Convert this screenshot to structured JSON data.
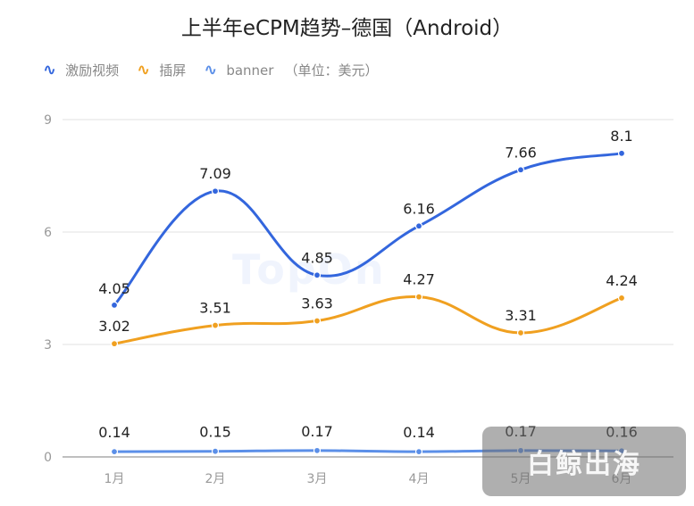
{
  "chart_data": {
    "type": "line",
    "title": "上半年eCPM趋势–德国（Android）",
    "unit_note": "（单位：美元）",
    "categories": [
      "1月",
      "2月",
      "3月",
      "4月",
      "5月",
      "6月"
    ],
    "yticks": [
      "0",
      "3",
      "6",
      "9"
    ],
    "ylim": [
      0,
      9
    ],
    "grid": true,
    "legend_position": "top-left",
    "series": [
      {
        "name": "激励视频",
        "color": "#3366dd",
        "values": [
          4.05,
          7.09,
          4.85,
          6.16,
          7.66,
          8.1
        ],
        "labels": [
          "4.05",
          "7.09",
          "4.85",
          "6.16",
          "7.66",
          "8.1"
        ]
      },
      {
        "name": "插屏",
        "color": "#f0a020",
        "values": [
          3.02,
          3.51,
          3.63,
          4.27,
          3.31,
          4.24
        ],
        "labels": [
          "3.02",
          "3.51",
          "3.63",
          "4.27",
          "3.31",
          "4.24"
        ]
      },
      {
        "name": "banner",
        "color": "#5b8fe8",
        "values": [
          0.14,
          0.15,
          0.17,
          0.14,
          0.17,
          0.16
        ],
        "labels": [
          "0.14",
          "0.15",
          "0.17",
          "0.14",
          "0.17",
          "0.16"
        ]
      }
    ]
  },
  "legend": {
    "icon": "∿"
  },
  "watermarks": {
    "center_logo": "TopOn",
    "corner_badge": "白鲸出海"
  }
}
